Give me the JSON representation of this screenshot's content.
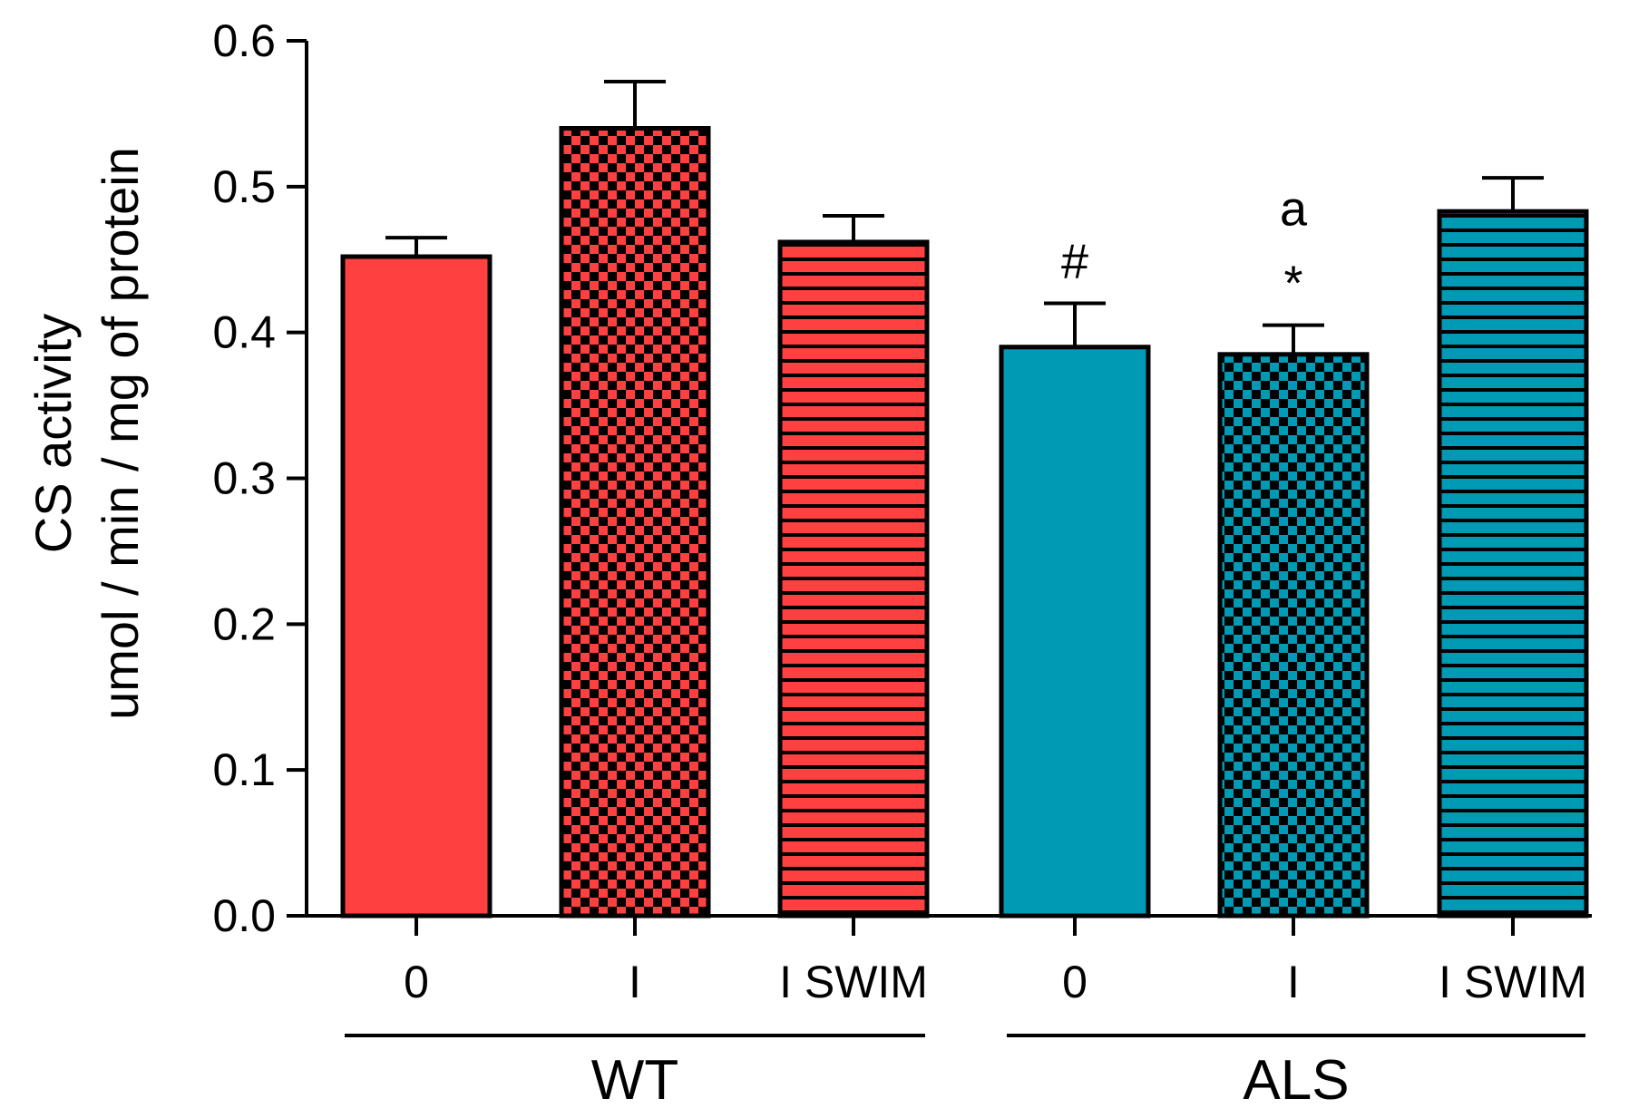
{
  "chart_data": {
    "type": "bar",
    "title": "",
    "ylabel": [
      "CS activity",
      "umol / min / mg of protein"
    ],
    "ylim": [
      0,
      0.6
    ],
    "yticks": [
      "0.0",
      "0.1",
      "0.2",
      "0.3",
      "0.4",
      "0.5",
      "0.6"
    ],
    "colors": {
      "WT": "#ff4040",
      "ALS": "#009ab5"
    },
    "groups": [
      {
        "name": "WT",
        "categories": [
          "0",
          "I",
          "I SWIM"
        ]
      },
      {
        "name": "ALS",
        "categories": [
          "0",
          "I",
          "I SWIM"
        ]
      }
    ],
    "bars": [
      {
        "group": "WT",
        "category": "0",
        "value": 0.452,
        "error": 0.013,
        "pattern": "solid",
        "annotations": []
      },
      {
        "group": "WT",
        "category": "I",
        "value": 0.54,
        "error": 0.032,
        "pattern": "checker",
        "annotations": []
      },
      {
        "group": "WT",
        "category": "I SWIM",
        "value": 0.462,
        "error": 0.018,
        "pattern": "stripes",
        "annotations": []
      },
      {
        "group": "ALS",
        "category": "0",
        "value": 0.39,
        "error": 0.03,
        "pattern": "solid",
        "annotations": [
          "#"
        ]
      },
      {
        "group": "ALS",
        "category": "I",
        "value": 0.385,
        "error": 0.02,
        "pattern": "checker",
        "annotations": [
          "*",
          "a"
        ]
      },
      {
        "group": "ALS",
        "category": "I SWIM",
        "value": 0.483,
        "error": 0.023,
        "pattern": "stripes",
        "annotations": []
      }
    ]
  }
}
